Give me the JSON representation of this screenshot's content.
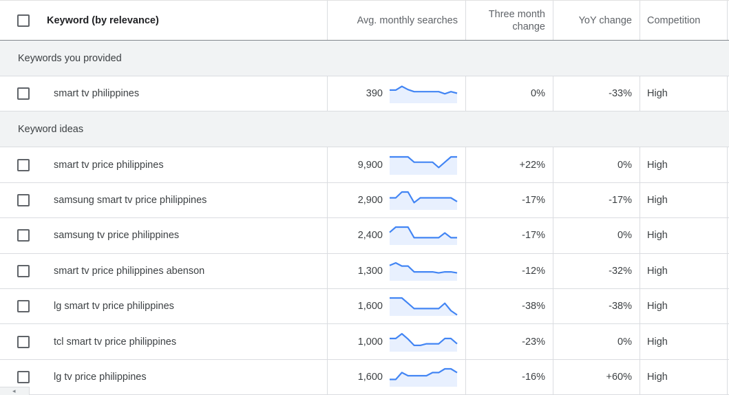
{
  "header": {
    "keyword": "Keyword (by relevance)",
    "avg_monthly_searches": "Avg. monthly searches",
    "three_month_change": "Three month change",
    "yoy_change": "YoY change",
    "competition": "Competition"
  },
  "groups": [
    {
      "label": "Keywords you provided",
      "rows": [
        {
          "keyword": "smart tv philippines",
          "avg": "390",
          "three_month": "0%",
          "yoy": "-33%",
          "competition": "High",
          "trend": [
            0.45,
            0.45,
            0.1,
            0.4,
            0.6,
            0.6,
            0.6,
            0.6,
            0.6,
            0.8,
            0.6,
            0.75
          ]
        }
      ]
    },
    {
      "label": "Keyword ideas",
      "rows": [
        {
          "keyword": "smart tv price philippines",
          "avg": "9,900",
          "three_month": "+22%",
          "yoy": "0%",
          "competition": "High",
          "trend": [
            0.0,
            0.0,
            0.0,
            0.0,
            0.5,
            0.5,
            0.5,
            0.5,
            1.0,
            0.5,
            0.0,
            0.0
          ]
        },
        {
          "keyword": "samsung smart tv price philippines",
          "avg": "2,900",
          "three_month": "-17%",
          "yoy": "-17%",
          "competition": "High",
          "trend": [
            0.55,
            0.55,
            0.0,
            0.0,
            1.0,
            0.55,
            0.55,
            0.55,
            0.55,
            0.55,
            0.55,
            0.9
          ]
        },
        {
          "keyword": "samsung tv price philippines",
          "avg": "2,400",
          "three_month": "-17%",
          "yoy": "0%",
          "competition": "High",
          "trend": [
            0.5,
            0.0,
            0.0,
            0.0,
            1.0,
            1.0,
            1.0,
            1.0,
            1.0,
            0.55,
            1.0,
            1.0
          ]
        },
        {
          "keyword": "smart tv price philippines abenson",
          "avg": "1,300",
          "three_month": "-12%",
          "yoy": "-32%",
          "competition": "High",
          "trend": [
            0.25,
            0.0,
            0.3,
            0.3,
            0.85,
            0.85,
            0.85,
            0.85,
            0.95,
            0.85,
            0.85,
            0.95
          ]
        },
        {
          "keyword": "lg smart tv price philippines",
          "avg": "1,600",
          "three_month": "-38%",
          "yoy": "-38%",
          "competition": "High",
          "trend": [
            0.0,
            0.0,
            0.0,
            0.5,
            1.0,
            1.0,
            1.0,
            1.0,
            1.0,
            0.5,
            1.2,
            1.6
          ]
        },
        {
          "keyword": "tcl smart tv price philippines",
          "avg": "1,000",
          "three_month": "-23%",
          "yoy": "0%",
          "competition": "High",
          "trend": [
            0.45,
            0.45,
            0.0,
            0.5,
            1.1,
            1.1,
            0.95,
            0.95,
            0.95,
            0.45,
            0.45,
            0.95
          ]
        },
        {
          "keyword": "lg tv price philippines",
          "avg": "1,600",
          "three_month": "-16%",
          "yoy": "+60%",
          "competition": "High",
          "trend": [
            1.0,
            1.0,
            0.35,
            0.65,
            0.65,
            0.65,
            0.65,
            0.35,
            0.35,
            0.0,
            0.0,
            0.35
          ]
        }
      ]
    }
  ],
  "colors": {
    "sparkline_line": "#4285f4",
    "sparkline_fill": "#e8f0fe",
    "group_bg": "#f1f3f4",
    "border": "#dadce0"
  },
  "scrollbar": {
    "left_arrow": "◂"
  }
}
